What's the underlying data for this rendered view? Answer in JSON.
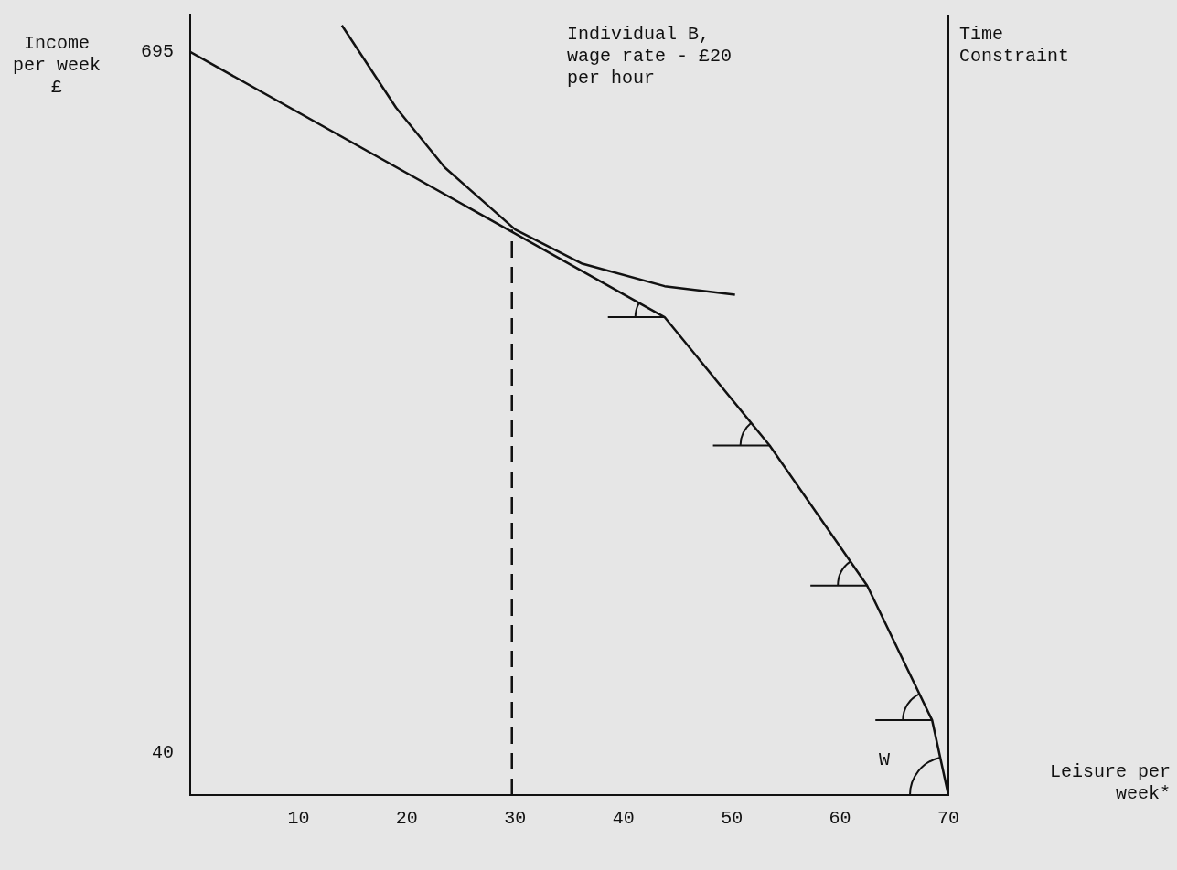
{
  "chart_data": {
    "type": "line",
    "title": "Individual B, wage rate - £20 per hour",
    "xlabel": "Leisure per week*",
    "ylabel": "Income per week £",
    "xlim": [
      0,
      70
    ],
    "xticks": [
      10,
      20,
      30,
      40,
      50,
      60,
      70
    ],
    "ylim": [
      0,
      730
    ],
    "yticks": [
      40,
      695
    ],
    "grid": false,
    "legend": false,
    "marker": "none",
    "series": [
      {
        "color": "#111111",
        "x": [
          0,
          43.8,
          53.5,
          62.5,
          68.5,
          70
        ],
        "values": [
          695,
          447,
          327,
          196,
          70,
          0
        ]
      },
      {
        "color": "#111111",
        "x": [
          14,
          19,
          23.5,
          30,
          36.2,
          43.8,
          50.3
        ],
        "values": [
          720,
          643,
          587,
          529,
          497,
          476,
          468
        ]
      },
      {
        "color": "#111111",
        "x": [
          29.7,
          29.7
        ],
        "values": [
          0,
          529
        ],
        "line_style": "dashed"
      }
    ],
    "ref_lines": [
      {
        "axis": "x",
        "value": 70,
        "label": "Time Constraint",
        "color": "#111111"
      }
    ],
    "annotations": [
      "W"
    ]
  }
}
